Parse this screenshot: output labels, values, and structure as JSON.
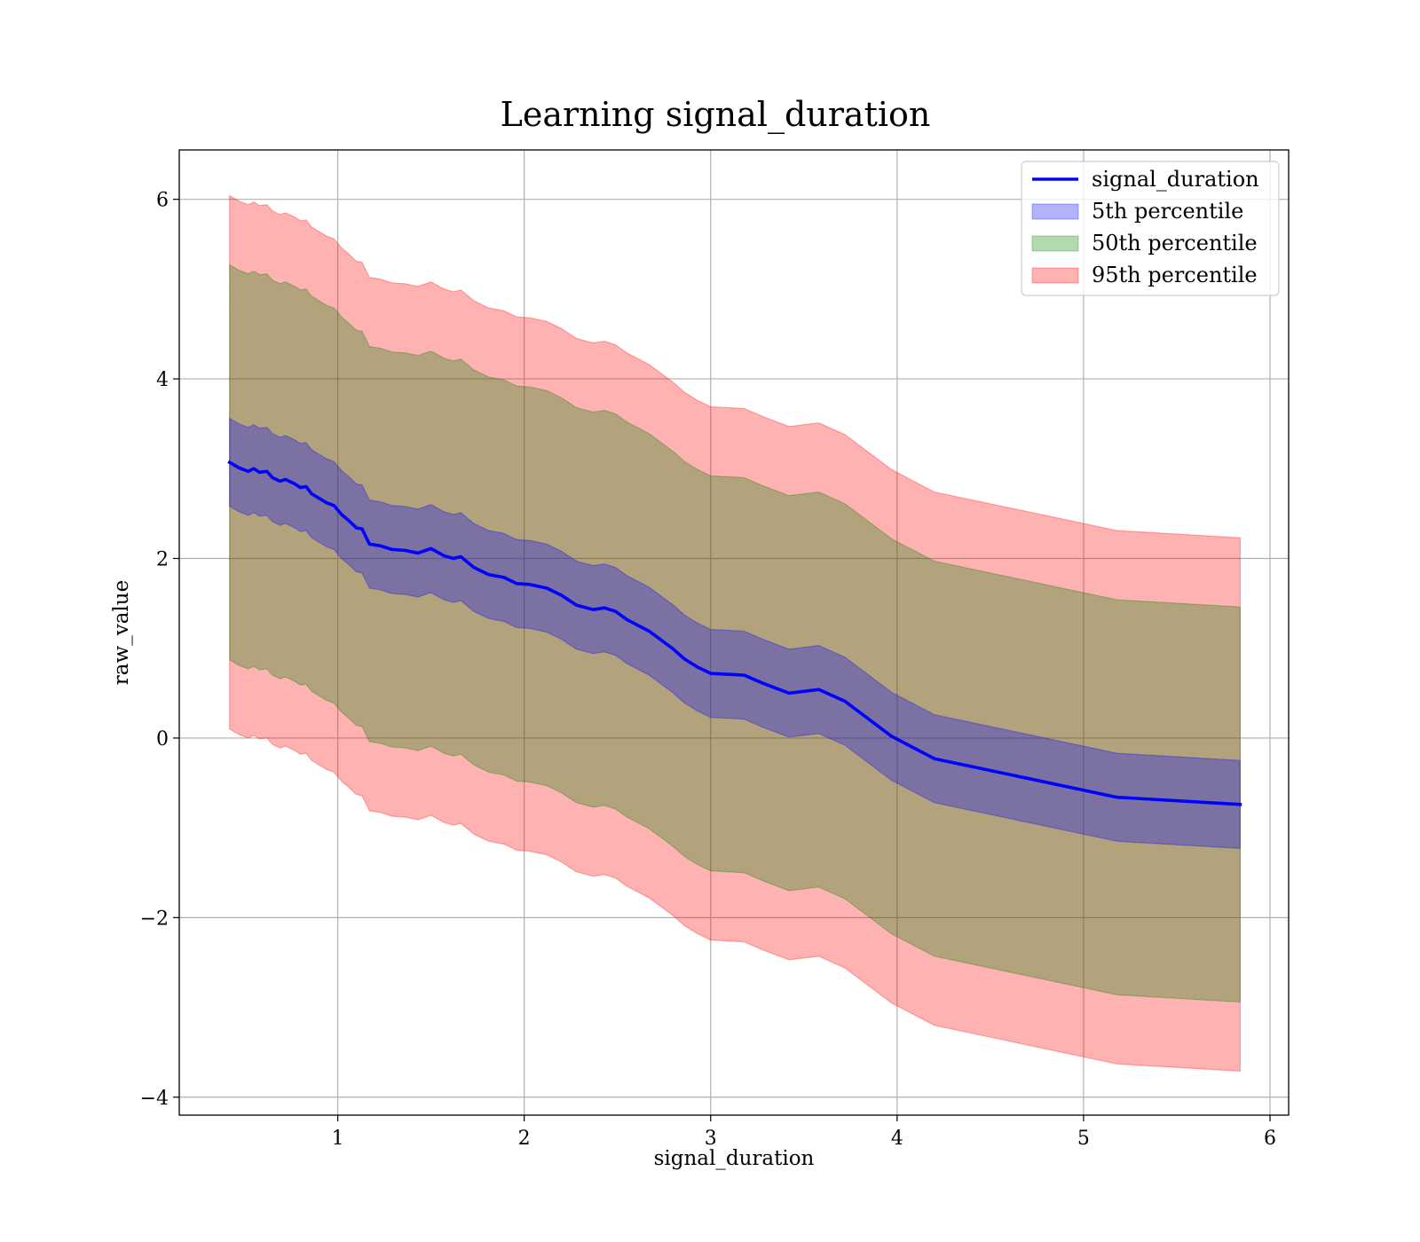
{
  "chart_data": {
    "type": "area",
    "title": "Learning signal_duration",
    "xlabel": "signal_duration",
    "ylabel": "raw_value",
    "xlim": [
      0.15,
      6.1
    ],
    "ylim": [
      -4.2,
      6.55
    ],
    "x_ticks": [
      1,
      2,
      3,
      4,
      5,
      6
    ],
    "y_ticks": [
      -4,
      -2,
      0,
      2,
      4,
      6
    ],
    "x_tick_labels": [
      "1",
      "2",
      "3",
      "4",
      "5",
      "6"
    ],
    "y_tick_labels": [
      "−4",
      "−2",
      "0",
      "2",
      "4",
      "6"
    ],
    "grid": true,
    "legend_position": "top-right",
    "x": [
      0.42,
      0.47,
      0.52,
      0.55,
      0.58,
      0.62,
      0.65,
      0.69,
      0.72,
      0.77,
      0.8,
      0.83,
      0.86,
      0.9,
      0.94,
      0.98,
      1.02,
      1.06,
      1.1,
      1.13,
      1.17,
      1.23,
      1.29,
      1.36,
      1.43,
      1.5,
      1.57,
      1.62,
      1.66,
      1.73,
      1.81,
      1.89,
      1.96,
      2.03,
      2.12,
      2.2,
      2.28,
      2.37,
      2.43,
      2.49,
      2.55,
      2.67,
      2.8,
      2.86,
      2.93,
      3.0,
      3.18,
      3.28,
      3.42,
      3.58,
      3.72,
      3.97,
      4.2,
      5.18,
      5.84
    ],
    "series": [
      {
        "name": "signal_duration",
        "kind": "line",
        "color": "#0000ff",
        "values": [
          3.07,
          3.01,
          2.97,
          3.0,
          2.96,
          2.97,
          2.9,
          2.86,
          2.88,
          2.83,
          2.79,
          2.8,
          2.72,
          2.67,
          2.62,
          2.59,
          2.49,
          2.42,
          2.34,
          2.33,
          2.16,
          2.14,
          2.1,
          2.09,
          2.06,
          2.11,
          2.03,
          2.0,
          2.02,
          1.9,
          1.82,
          1.79,
          1.72,
          1.71,
          1.67,
          1.59,
          1.48,
          1.43,
          1.45,
          1.41,
          1.32,
          1.19,
          0.99,
          0.88,
          0.79,
          0.72,
          0.7,
          0.61,
          0.5,
          0.54,
          0.41,
          0.02,
          -0.23,
          -0.66,
          -0.74
        ]
      },
      {
        "name": "5th percentile",
        "kind": "band",
        "color": "#0000ff",
        "opacity": 0.3,
        "half_width": [
          0.49,
          0.49,
          0.49,
          0.49,
          0.49,
          0.49,
          0.49,
          0.49,
          0.49,
          0.49,
          0.49,
          0.49,
          0.49,
          0.49,
          0.49,
          0.49,
          0.49,
          0.49,
          0.49,
          0.49,
          0.49,
          0.49,
          0.49,
          0.49,
          0.49,
          0.49,
          0.49,
          0.49,
          0.49,
          0.49,
          0.49,
          0.49,
          0.49,
          0.49,
          0.49,
          0.49,
          0.49,
          0.49,
          0.49,
          0.49,
          0.49,
          0.49,
          0.49,
          0.49,
          0.49,
          0.49,
          0.49,
          0.49,
          0.49,
          0.49,
          0.49,
          0.49,
          0.49,
          0.49,
          0.49
        ]
      },
      {
        "name": "50th percentile",
        "kind": "band",
        "color": "#008000",
        "opacity": 0.3,
        "half_width": [
          2.2,
          2.2,
          2.2,
          2.2,
          2.2,
          2.2,
          2.2,
          2.2,
          2.2,
          2.2,
          2.2,
          2.2,
          2.2,
          2.2,
          2.2,
          2.2,
          2.2,
          2.2,
          2.2,
          2.2,
          2.2,
          2.2,
          2.2,
          2.2,
          2.2,
          2.2,
          2.2,
          2.2,
          2.2,
          2.2,
          2.2,
          2.2,
          2.2,
          2.2,
          2.2,
          2.2,
          2.2,
          2.2,
          2.2,
          2.2,
          2.2,
          2.2,
          2.2,
          2.2,
          2.2,
          2.2,
          2.2,
          2.2,
          2.2,
          2.2,
          2.2,
          2.2,
          2.2,
          2.2,
          2.2
        ]
      },
      {
        "name": "95th percentile",
        "kind": "band",
        "color": "#ff0000",
        "opacity": 0.3,
        "half_width": [
          2.97,
          2.97,
          2.97,
          2.97,
          2.97,
          2.97,
          2.97,
          2.97,
          2.97,
          2.97,
          2.97,
          2.97,
          2.97,
          2.97,
          2.97,
          2.97,
          2.97,
          2.97,
          2.97,
          2.97,
          2.97,
          2.97,
          2.97,
          2.97,
          2.97,
          2.97,
          2.97,
          2.97,
          2.97,
          2.97,
          2.97,
          2.97,
          2.97,
          2.97,
          2.97,
          2.97,
          2.97,
          2.97,
          2.97,
          2.97,
          2.97,
          2.97,
          2.97,
          2.97,
          2.97,
          2.97,
          2.97,
          2.97,
          2.97,
          2.97,
          2.97,
          2.97,
          2.97,
          2.97,
          2.97
        ]
      }
    ],
    "legend": [
      {
        "label": "signal_duration",
        "kind": "line",
        "color": "#0000ff"
      },
      {
        "label": "5th percentile",
        "kind": "patch",
        "color": "#0000ff"
      },
      {
        "label": "50th percentile",
        "kind": "patch",
        "color": "#008000"
      },
      {
        "label": "95th percentile",
        "kind": "patch",
        "color": "#ff0000"
      }
    ]
  }
}
